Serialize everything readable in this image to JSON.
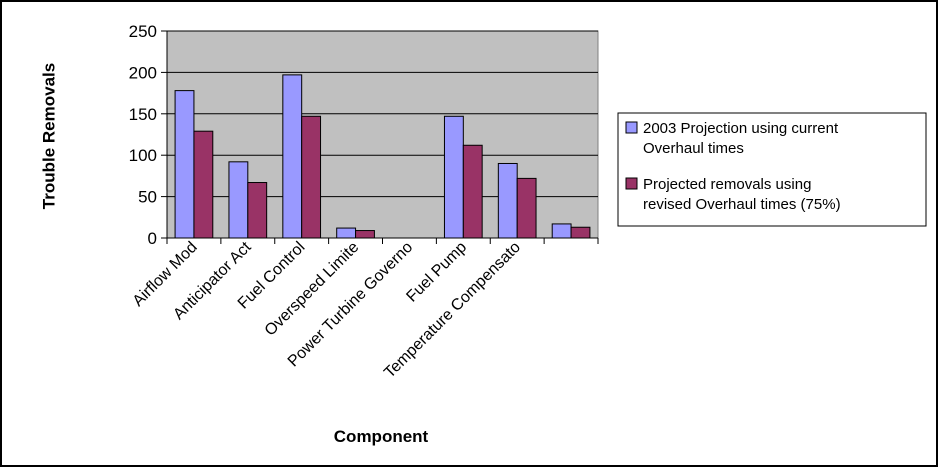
{
  "chart_data": {
    "type": "bar",
    "title": "",
    "xlabel": "Component",
    "ylabel": "Trouble Removals",
    "ylim": [
      0,
      250
    ],
    "yticks": [
      0,
      50,
      100,
      150,
      200,
      250
    ],
    "grid": true,
    "legend_position": "right",
    "categories": [
      "Airflow Mod",
      "Anticipator Act",
      "Fuel Control",
      "Overspeed Limite",
      "Power Turbine Governo",
      "Fuel Pump",
      "Temperature Compensato",
      ""
    ],
    "series": [
      {
        "name": "2003 Projection using current Overhaul times",
        "legend_lines": [
          "2003 Projection using current",
          "Overhaul times"
        ],
        "color": "#9999ff",
        "values": [
          178,
          92,
          197,
          12,
          0,
          147,
          90,
          17
        ]
      },
      {
        "name": "Projected removals using revised Overhaul times (75%)",
        "legend_lines": [
          "Projected removals using",
          "revised Overhaul times (75%)"
        ],
        "color": "#993366",
        "values": [
          129,
          67,
          147,
          9,
          0,
          112,
          72,
          13
        ]
      }
    ],
    "plot_background": "#c0c0c0",
    "gridline_color": "#000000"
  }
}
